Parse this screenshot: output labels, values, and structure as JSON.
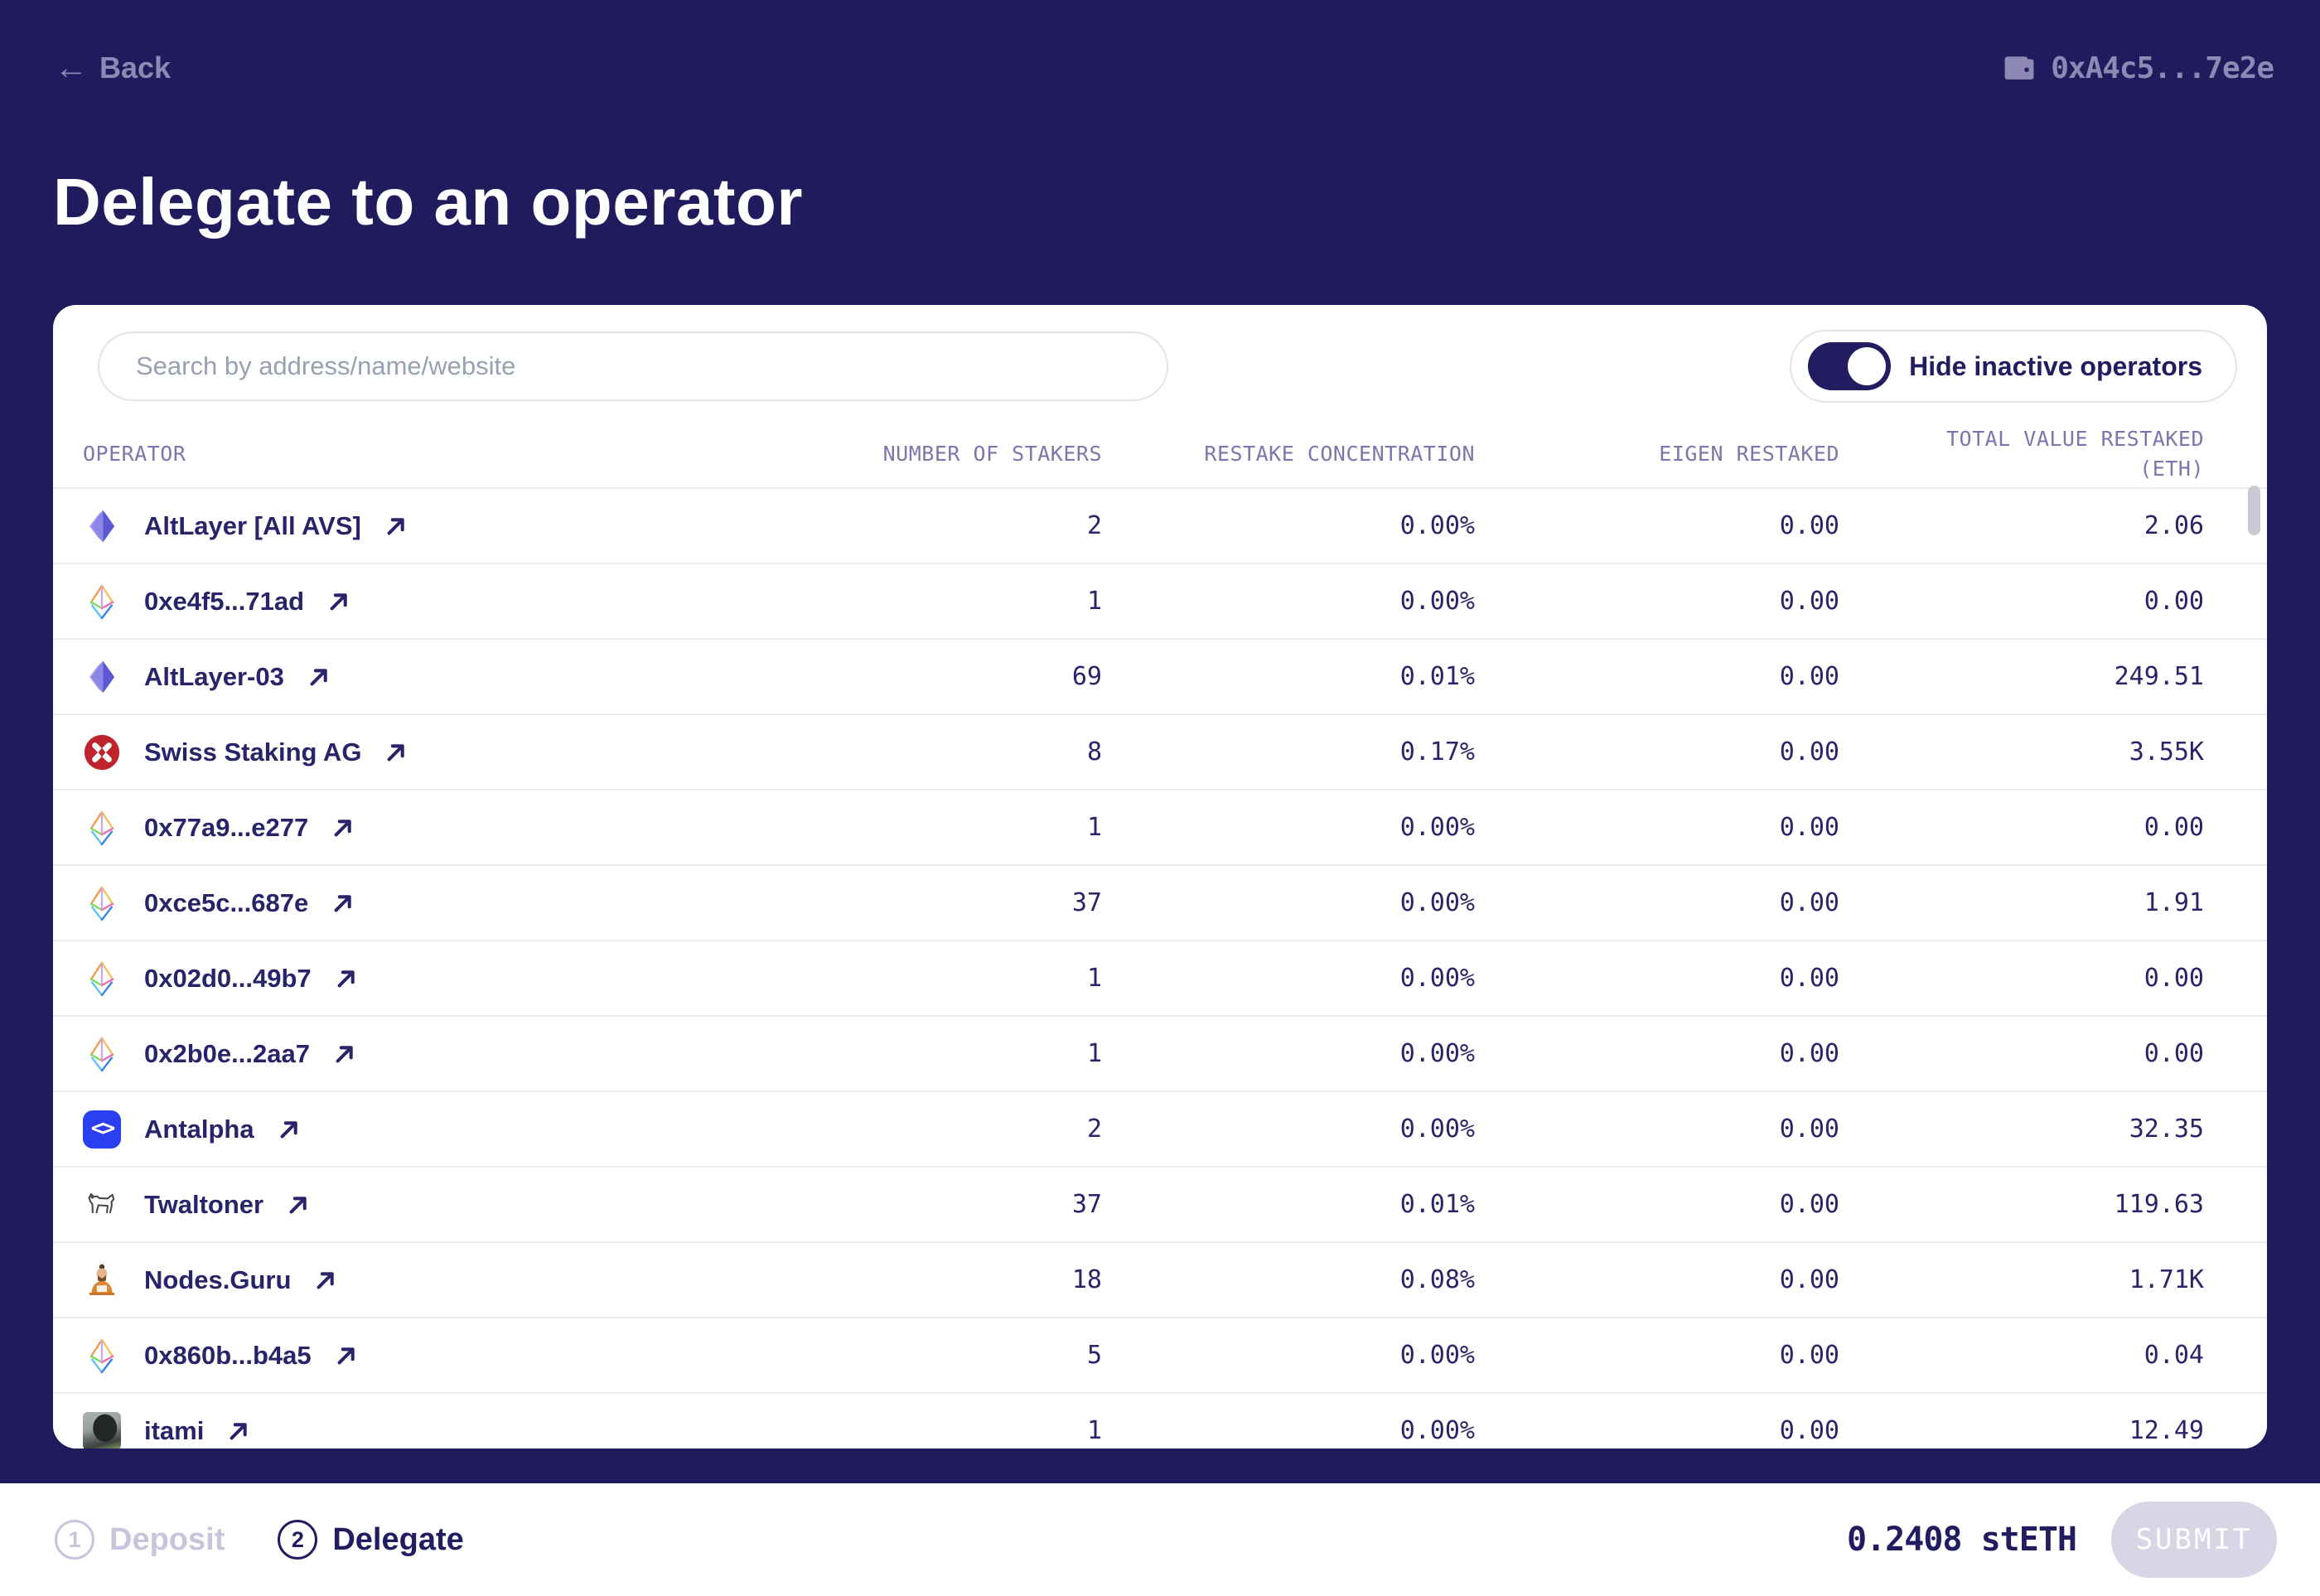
{
  "topbar": {
    "back_label": "Back",
    "wallet_address": "0xA4c5...7e2e"
  },
  "page_title": "Delegate to an operator",
  "panel": {
    "search_placeholder": "Search by address/name/website",
    "toggle_label": "Hide inactive operators",
    "toggle_state": "on"
  },
  "table": {
    "columns": [
      "OPERATOR",
      "NUMBER OF STAKERS",
      "RESTAKE CONCENTRATION",
      "EIGEN RESTAKED",
      "TOTAL VALUE RESTAKED\n(ETH)"
    ],
    "rows": [
      {
        "operator": "AltLayer [All AVS]",
        "icon": "altlayer-icon",
        "stakers": "2",
        "concentration": "0.00%",
        "eigen_restaked": "0.00",
        "total_restaked": "2.06"
      },
      {
        "operator": "0xe4f5...71ad",
        "icon": "eth-diamond-icon",
        "stakers": "1",
        "concentration": "0.00%",
        "eigen_restaked": "0.00",
        "total_restaked": "0.00"
      },
      {
        "operator": "AltLayer-03",
        "icon": "altlayer-icon",
        "stakers": "69",
        "concentration": "0.01%",
        "eigen_restaked": "0.00",
        "total_restaked": "249.51"
      },
      {
        "operator": "Swiss Staking AG",
        "icon": "swiss-staking-icon",
        "stakers": "8",
        "concentration": "0.17%",
        "eigen_restaked": "0.00",
        "total_restaked": "3.55K"
      },
      {
        "operator": "0x77a9...e277",
        "icon": "eth-diamond-icon",
        "stakers": "1",
        "concentration": "0.00%",
        "eigen_restaked": "0.00",
        "total_restaked": "0.00"
      },
      {
        "operator": "0xce5c...687e",
        "icon": "eth-diamond-icon",
        "stakers": "37",
        "concentration": "0.00%",
        "eigen_restaked": "0.00",
        "total_restaked": "1.91"
      },
      {
        "operator": "0x02d0...49b7",
        "icon": "eth-diamond-icon",
        "stakers": "1",
        "concentration": "0.00%",
        "eigen_restaked": "0.00",
        "total_restaked": "0.00"
      },
      {
        "operator": "0x2b0e...2aa7",
        "icon": "eth-diamond-icon",
        "stakers": "1",
        "concentration": "0.00%",
        "eigen_restaked": "0.00",
        "total_restaked": "0.00"
      },
      {
        "operator": "Antalpha",
        "icon": "antalpha-icon",
        "stakers": "2",
        "concentration": "0.00%",
        "eigen_restaked": "0.00",
        "total_restaked": "32.35"
      },
      {
        "operator": "Twaltoner",
        "icon": "dog-icon",
        "stakers": "37",
        "concentration": "0.01%",
        "eigen_restaked": "0.00",
        "total_restaked": "119.63"
      },
      {
        "operator": "Nodes.Guru",
        "icon": "guru-icon",
        "stakers": "18",
        "concentration": "0.08%",
        "eigen_restaked": "0.00",
        "total_restaked": "1.71K"
      },
      {
        "operator": "0x860b...b4a5",
        "icon": "eth-diamond-icon",
        "stakers": "5",
        "concentration": "0.00%",
        "eigen_restaked": "0.00",
        "total_restaked": "0.04"
      },
      {
        "operator": "itami",
        "icon": "photo-avatar",
        "stakers": "1",
        "concentration": "0.00%",
        "eigen_restaked": "0.00",
        "total_restaked": "12.49"
      }
    ]
  },
  "footer": {
    "steps": [
      {
        "number": "1",
        "label": "Deposit",
        "state": "inactive"
      },
      {
        "number": "2",
        "label": "Delegate",
        "state": "active"
      }
    ],
    "amount": "0.2408 stETH",
    "submit_label": "SUBMIT"
  },
  "colors": {
    "background": "#201b5d",
    "accent_navy": "#221d60",
    "antalpha_blue": "#2b3ff2",
    "swiss_red": "#c0242b",
    "disabled_button": "#d8d5e6",
    "muted_lavender": "#8d88b4"
  }
}
